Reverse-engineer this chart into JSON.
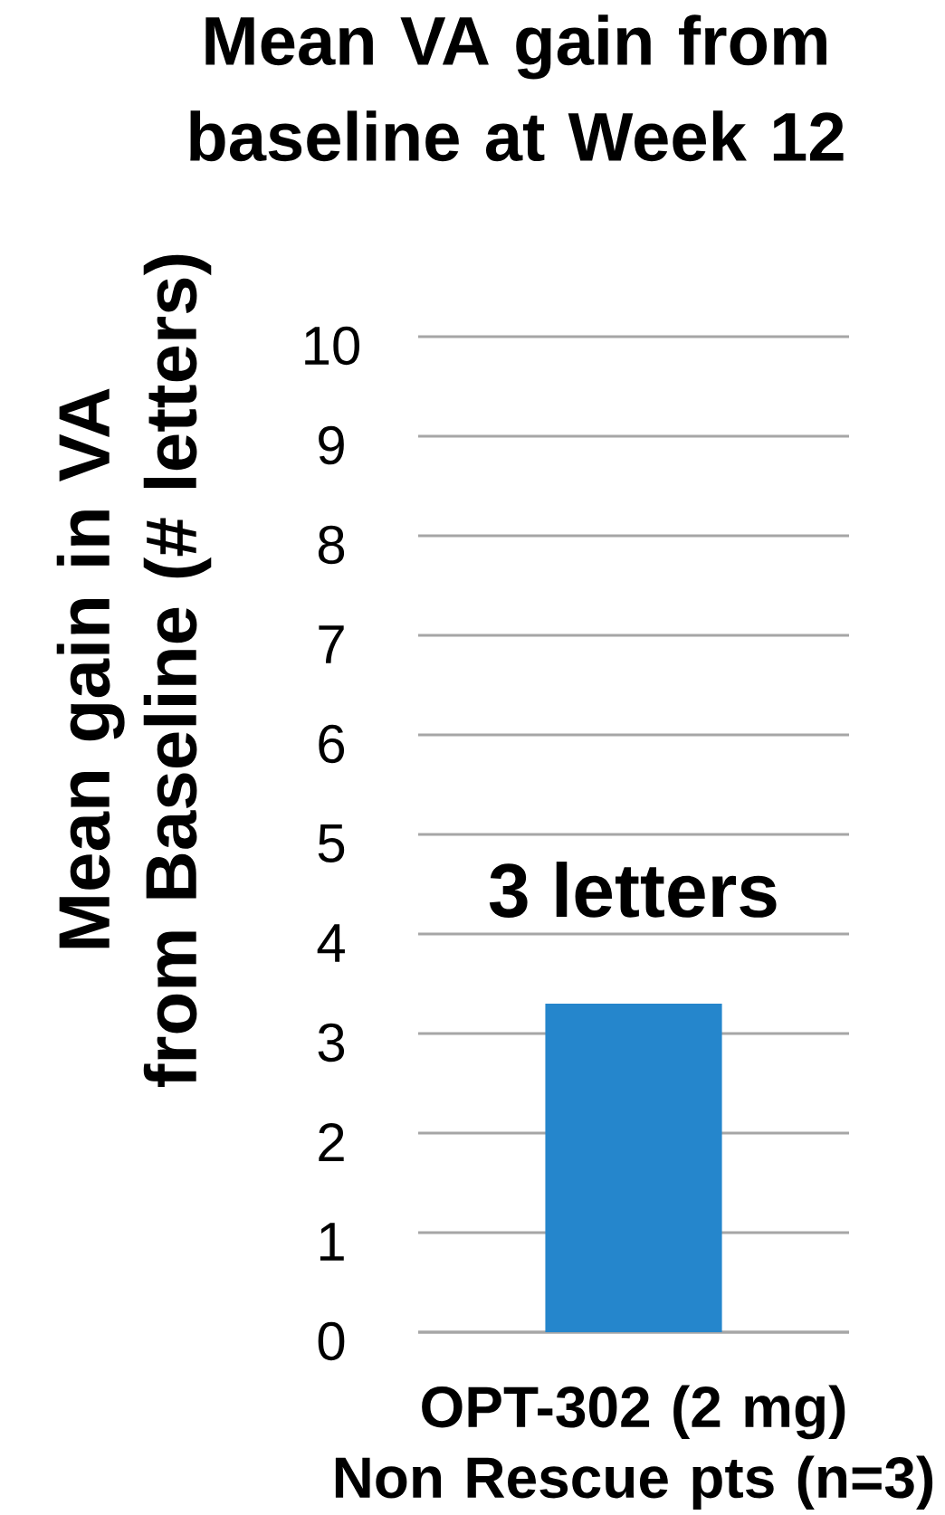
{
  "chart_data": {
    "type": "bar",
    "title": "Mean VA gain from baseline at Week 12",
    "categories": [
      "OPT-302 (2 mg) Non Rescue pts (n=3)"
    ],
    "ylabel": "Mean gain in VA from Baseline (# letters)",
    "values": [
      3.3
    ],
    "value_labels": [
      "3 letters"
    ],
    "color": "#2586cc",
    "ylim": [
      0,
      10
    ],
    "yticks": [
      0,
      1,
      2,
      3,
      4,
      5,
      6,
      7,
      8,
      9,
      10
    ],
    "grid": "y"
  }
}
